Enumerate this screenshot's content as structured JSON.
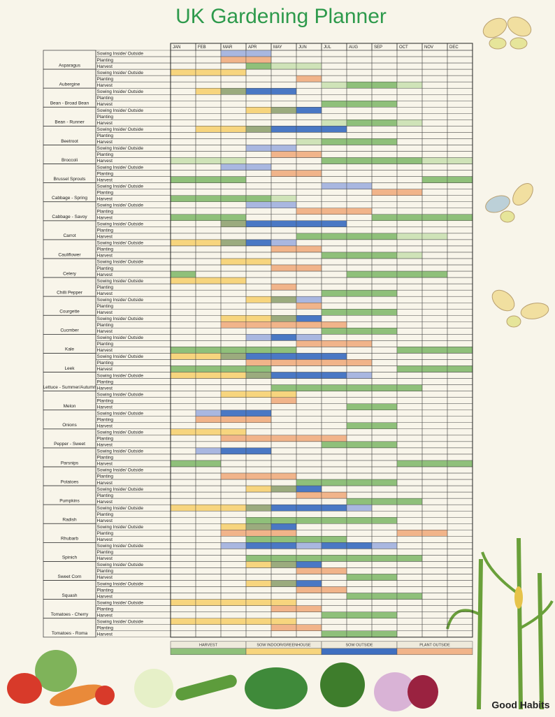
{
  "header": {
    "title": "UK Gardening Planner"
  },
  "table": {
    "months": [
      "JAN",
      "FEB",
      "MAR",
      "APR",
      "MAY",
      "JUN",
      "JUL",
      "AUG",
      "SEP",
      "OCT",
      "NOV",
      "DEC"
    ],
    "tasks": [
      "Sowing Inside/ Outside",
      "Planting",
      "Harvest"
    ],
    "vegetables": [
      "Asparagus",
      "Aubergine",
      "Bean - Broad Bean",
      "Bean - Runner",
      "Beetroot",
      "Broccoli",
      "Brussel Sprouts",
      "Cabbage - Spring",
      "Cabbage - Savoy",
      "Carrot",
      "Cauliflower",
      "Celery",
      "Chilli Pepper",
      "Courgette",
      "Cucmber",
      "Kale",
      "Leek",
      "Lettuce - Summer/Autumn",
      "Melon",
      "Onions",
      "Pepper - Sweet",
      "Parsnips",
      "Potatoes",
      "Pumpkins",
      "Radish",
      "Rhubarb",
      "Spinich",
      "Sweet Corn",
      "Squash",
      "Tomatoes - Cherry",
      "Tomatoes - Roma"
    ]
  },
  "legend": {
    "items": [
      {
        "label": "HARVEST",
        "color": "#8fc07a"
      },
      {
        "label": "SOW INDOOR/GREENHOUSE",
        "color": "#f7d57e"
      },
      {
        "label": "SOW OUTSIDE",
        "color": "#3f6fc0"
      },
      {
        "label": "PLANT OUTSIDE",
        "color": "#f1b48a"
      }
    ]
  },
  "footer": {
    "brand": "Good Habits"
  }
}
